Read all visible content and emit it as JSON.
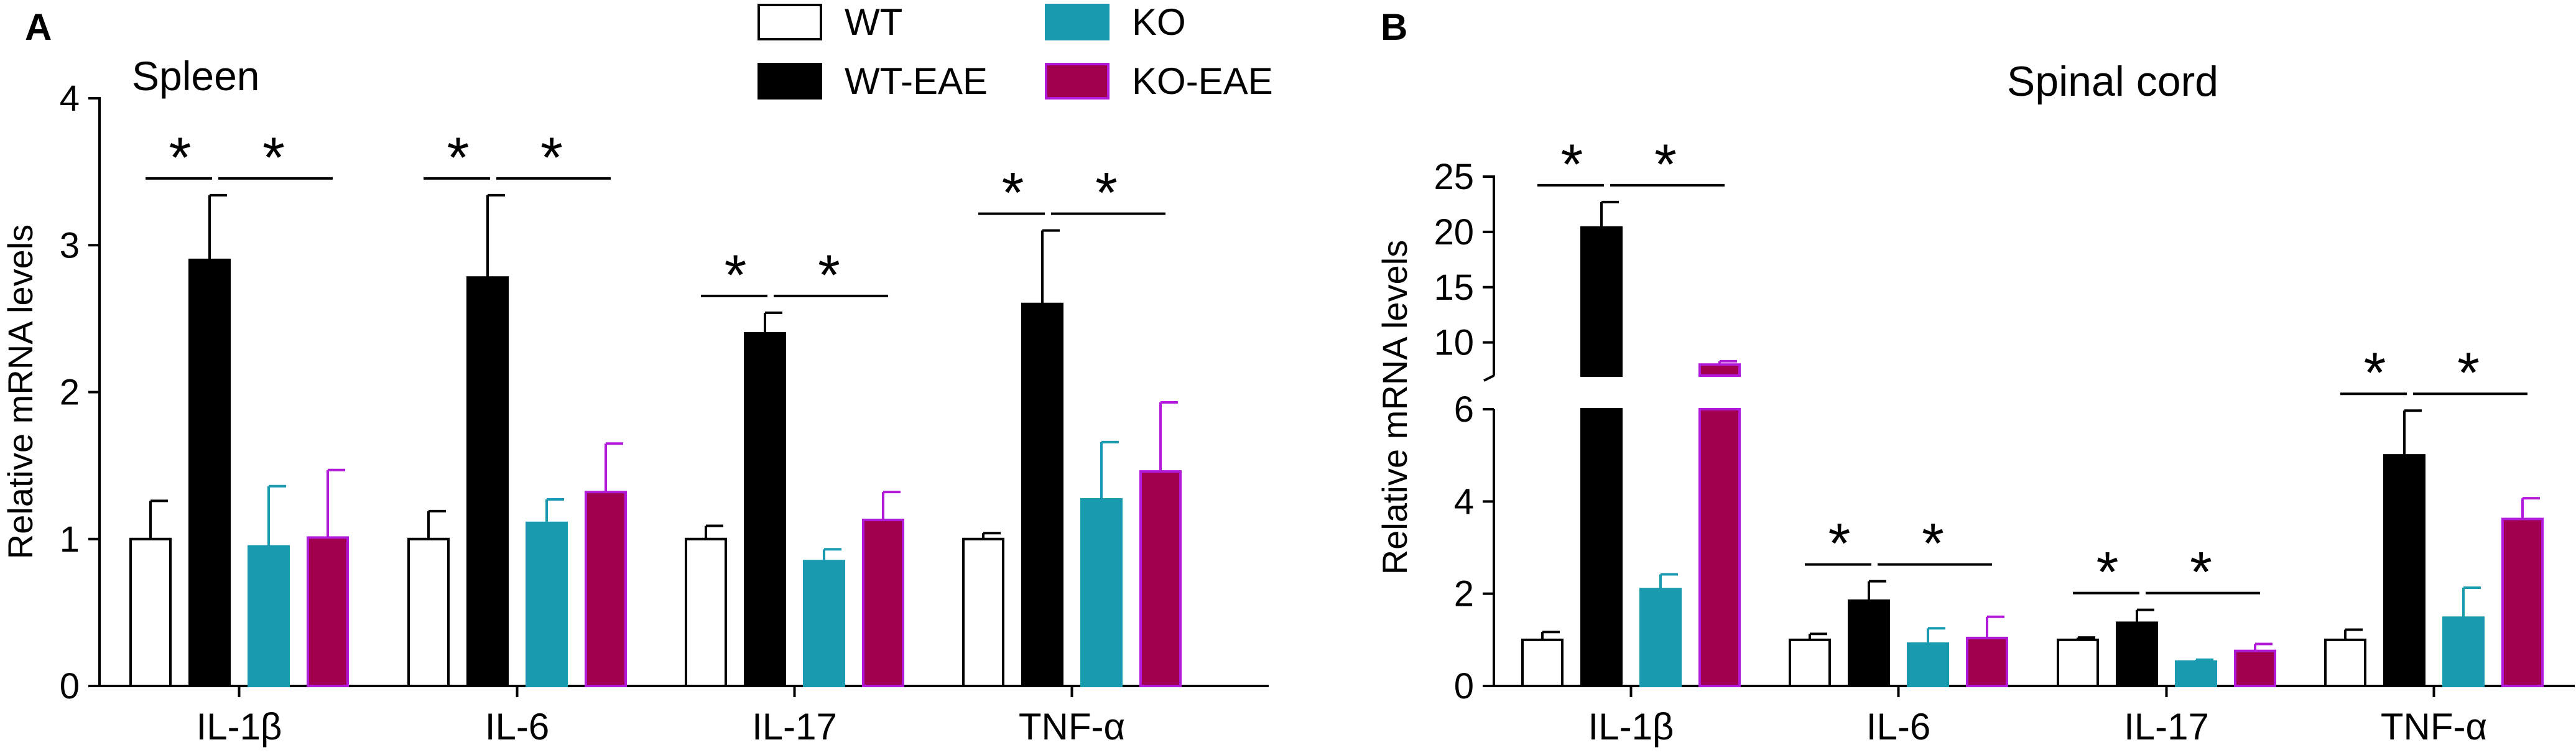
{
  "legend": [
    {
      "name": "WT",
      "color": "#ffffff"
    },
    {
      "name": "WT-EAE",
      "color": "#000000"
    },
    {
      "name": "KO",
      "color": "#1a9aae"
    },
    {
      "name": "KO-EAE",
      "color": "#a0004e"
    }
  ],
  "colors": {
    "wt": "#ffffff",
    "wt_eae": "#000000",
    "ko": "#1a9aae",
    "ko_eae": "#a0004e",
    "ko_eae_edge": "#b01ad8"
  },
  "chart_data": [
    {
      "type": "bar",
      "panel_label": "A",
      "title": "Spleen",
      "ylabel": "Relative mRNA levels",
      "ylim": [
        0,
        4
      ],
      "yticks": [
        "0",
        "1",
        "2",
        "3",
        "4"
      ],
      "categories": [
        "IL-1β",
        "IL-6",
        "IL-17",
        "TNF-α"
      ],
      "series": [
        {
          "name": "WT",
          "values": [
            1.0,
            1.0,
            1.0,
            1.0
          ],
          "errors": [
            0.26,
            0.19,
            0.09,
            0.04
          ]
        },
        {
          "name": "WT-EAE",
          "values": [
            2.9,
            2.78,
            2.4,
            2.6
          ],
          "errors": [
            0.44,
            0.56,
            0.14,
            0.5
          ]
        },
        {
          "name": "KO",
          "values": [
            0.95,
            1.11,
            0.85,
            1.27
          ],
          "errors": [
            0.41,
            0.16,
            0.08,
            0.39
          ]
        },
        {
          "name": "KO-EAE",
          "values": [
            1.01,
            1.32,
            1.13,
            1.46
          ],
          "errors": [
            0.46,
            0.33,
            0.19,
            0.47
          ]
        }
      ],
      "significance": [
        {
          "category": "IL-1β",
          "marks": [
            "*",
            "*"
          ]
        },
        {
          "category": "IL-6",
          "marks": [
            "*",
            "*"
          ]
        },
        {
          "category": "IL-17",
          "marks": [
            "*",
            "*"
          ]
        },
        {
          "category": "TNF-α",
          "marks": [
            "*",
            "*"
          ]
        }
      ]
    },
    {
      "type": "bar",
      "panel_label": "B",
      "title": "Spinal cord",
      "ylabel": "Relative mRNA levels",
      "axis_break": true,
      "ylim_lower": [
        0,
        6
      ],
      "ylim_upper": [
        7,
        25
      ],
      "yticks_lower": [
        "0",
        "2",
        "4",
        "6"
      ],
      "yticks_upper": [
        "10",
        "15",
        "20",
        "25"
      ],
      "categories": [
        "IL-1β",
        "IL-6",
        "IL-17",
        "TNF-α"
      ],
      "series": [
        {
          "name": "WT",
          "values": [
            1.0,
            1.0,
            1.0,
            1.0
          ],
          "errors": [
            0.17,
            0.13,
            0.05,
            0.22
          ]
        },
        {
          "name": "WT-EAE",
          "values": [
            20.4,
            1.85,
            1.37,
            5.0
          ],
          "errors": [
            2.3,
            0.42,
            0.28,
            0.97
          ]
        },
        {
          "name": "KO",
          "values": [
            2.1,
            0.92,
            0.53,
            1.48
          ],
          "errors": [
            0.32,
            0.33,
            0.04,
            0.65
          ]
        },
        {
          "name": "KO-EAE",
          "values": [
            8.0,
            1.04,
            0.76,
            3.62
          ],
          "errors": [
            0.3,
            0.46,
            0.15,
            0.45
          ]
        }
      ],
      "significance": [
        {
          "category": "IL-1β",
          "marks": [
            "*",
            "*"
          ]
        },
        {
          "category": "IL-6",
          "marks": [
            "*",
            "*"
          ]
        },
        {
          "category": "IL-17",
          "marks": [
            "*",
            "*"
          ]
        },
        {
          "category": "TNF-α",
          "marks": [
            "*",
            "*"
          ]
        }
      ]
    }
  ]
}
